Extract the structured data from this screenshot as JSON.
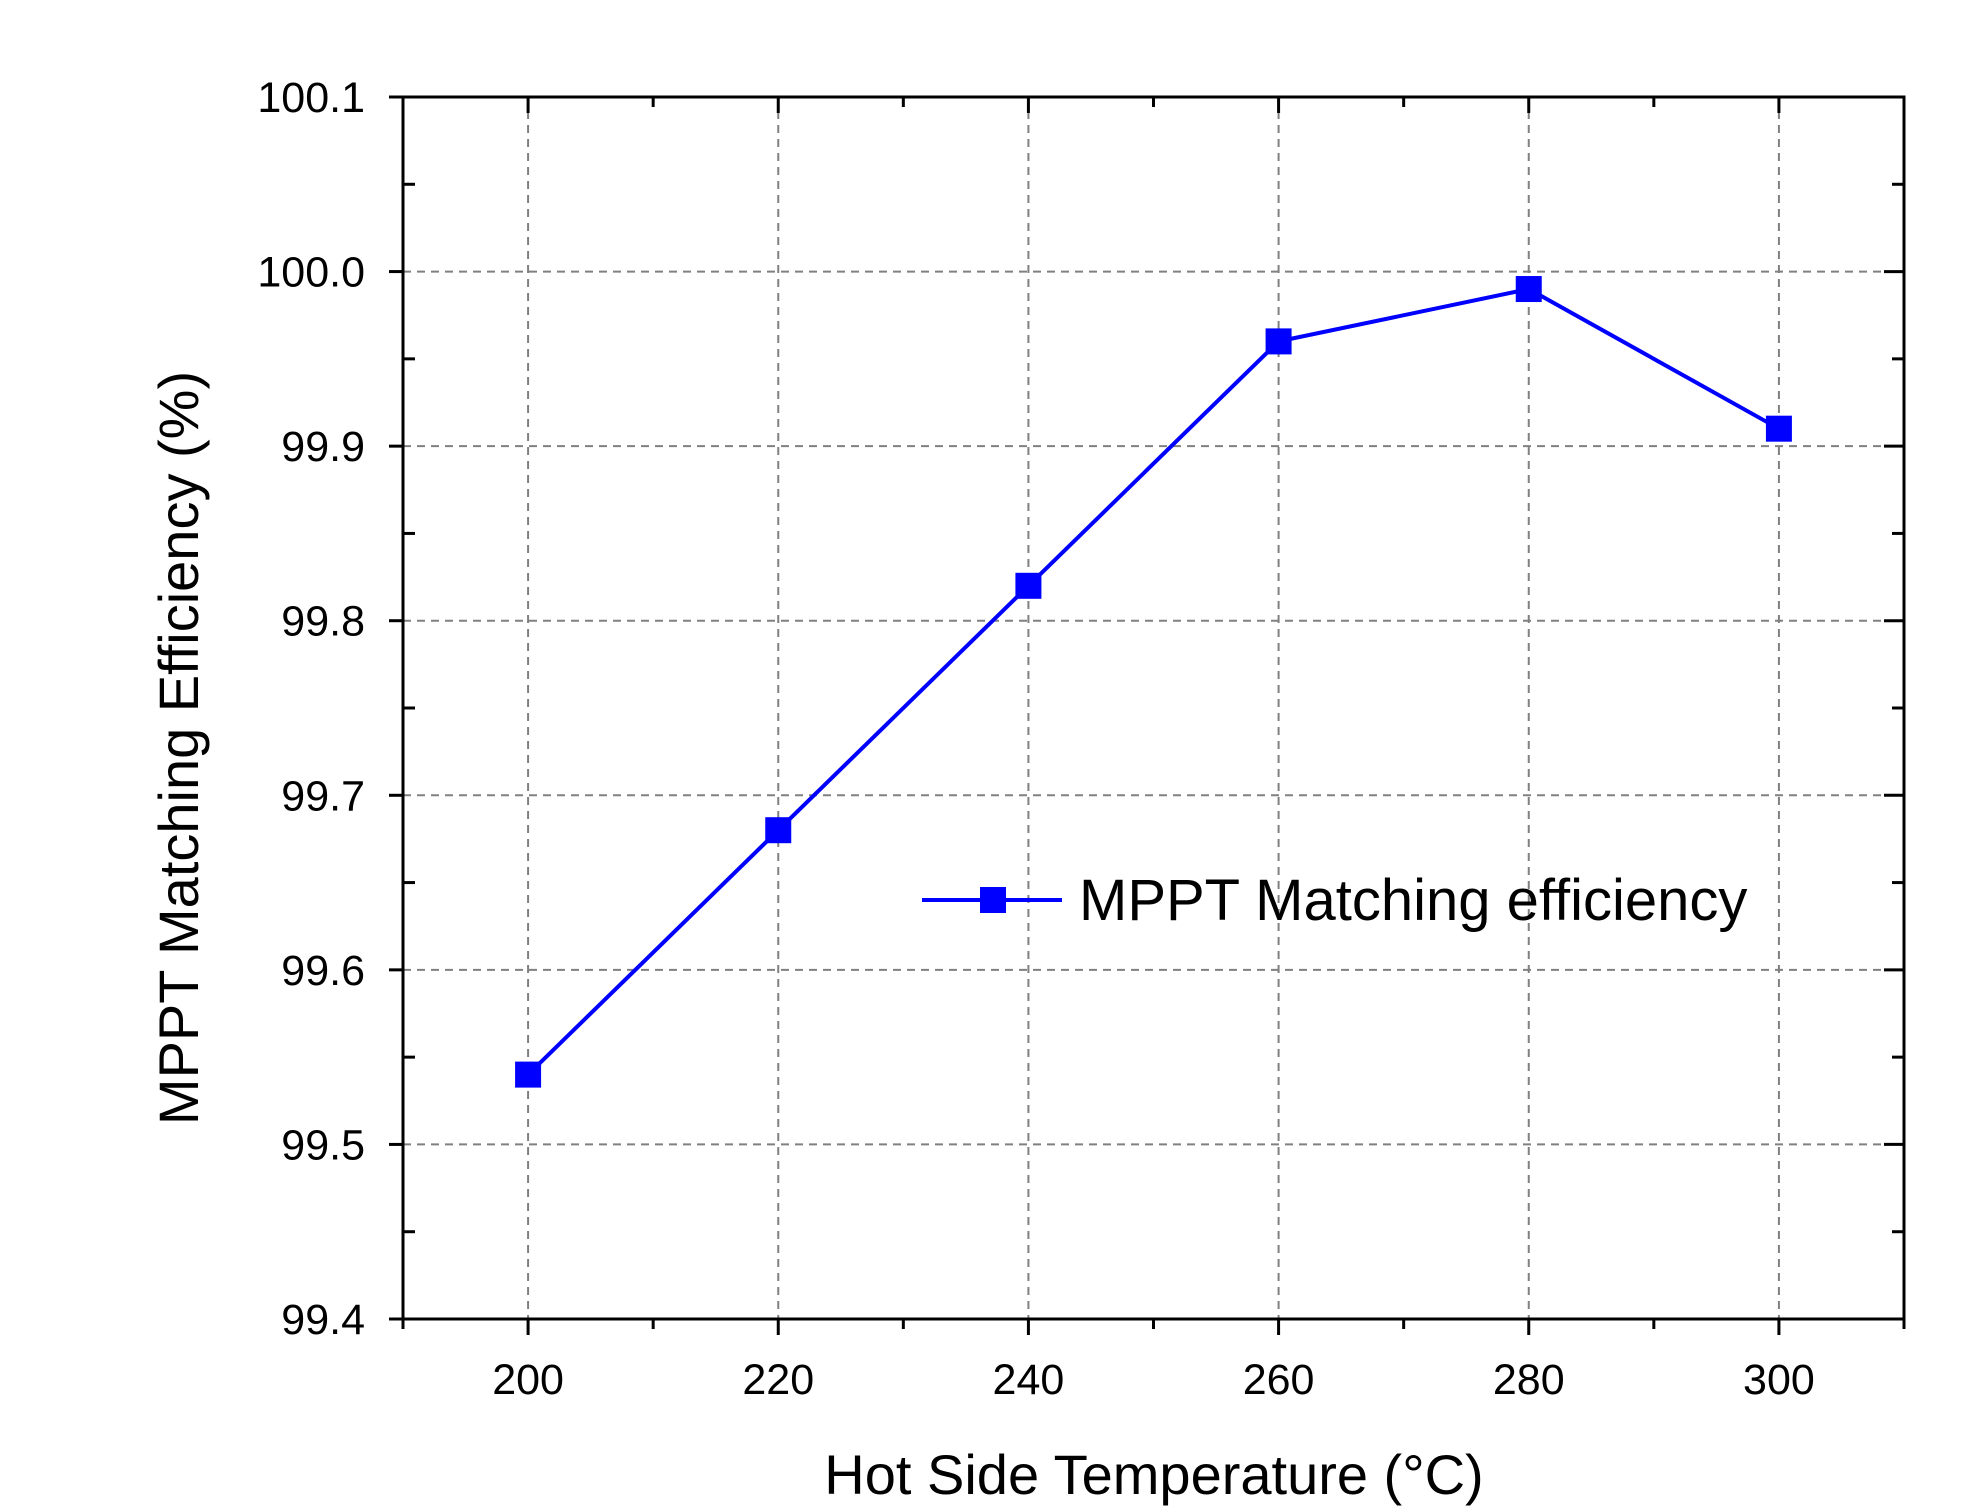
{
  "chart_data": {
    "type": "line",
    "title": "",
    "xlabel": "Hot Side Temperature (°C)",
    "ylabel": "MPPT Matching Efficiency (%)",
    "xlim": [
      190,
      310
    ],
    "ylim": [
      99.4,
      100.1
    ],
    "xticks": [
      "200",
      "220",
      "240",
      "260",
      "280",
      "300"
    ],
    "yticks": [
      "99.4",
      "99.5",
      "99.6",
      "99.7",
      "99.8",
      "99.9",
      "100.0",
      "100.1"
    ],
    "grid": true,
    "legend_position": "center-right",
    "series": [
      {
        "name": "MPPT Matching efficiency",
        "color": "#0000ff",
        "marker": "square",
        "x": [
          200,
          220,
          240,
          260,
          280,
          300
        ],
        "y": [
          99.54,
          99.68,
          99.82,
          99.96,
          99.99,
          99.91
        ]
      }
    ]
  }
}
